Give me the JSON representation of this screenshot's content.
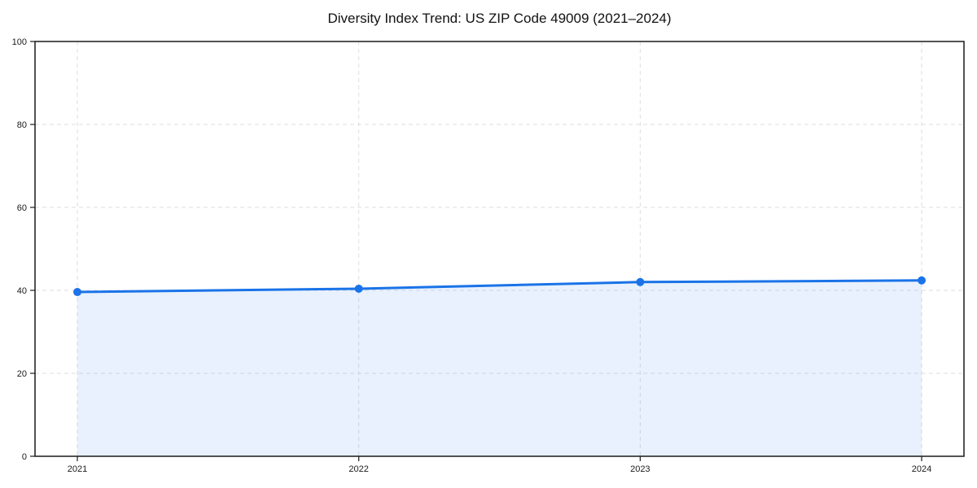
{
  "page": {
    "background": "#ffffff"
  },
  "chart_data": {
    "type": "area",
    "title": "Diversity Index Trend: US ZIP Code 49009 (2021–2024)",
    "categories": [
      "2021",
      "2022",
      "2023",
      "2024"
    ],
    "values": [
      39.6,
      40.4,
      42.0,
      42.4
    ],
    "xlabel": "",
    "ylabel": "",
    "ylim": [
      0,
      100
    ],
    "yticks": [
      0,
      20,
      40,
      60,
      80,
      100
    ],
    "grid": true,
    "grid_style": "dashed",
    "legend_position": "none",
    "line_color": "#1a73e8",
    "fill_color": "#1a73e8",
    "fill_opacity": 0.1,
    "marker": "circle",
    "marker_radius": 5,
    "line_width": 3,
    "grid_color": "#dedede",
    "spine_color": "#1a1a1a",
    "tick_label_color": "#1a1a1a",
    "title_color": "#111111"
  }
}
